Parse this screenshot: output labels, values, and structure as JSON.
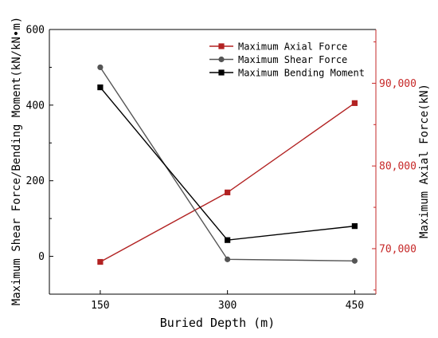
{
  "chart_data": {
    "type": "line",
    "xlabel": "Buried Depth (m)",
    "ylabel_left": "Maximum Shear Force/Bending Moment(kN/kN•m)",
    "ylabel_right": "Maximum Axial Force(kN)",
    "x": [
      150,
      300,
      450
    ],
    "xlim": [
      90,
      475
    ],
    "x_ticks": [
      150,
      300,
      450
    ],
    "ylim_left": [
      -100,
      600
    ],
    "y_ticks_left": [
      0,
      200,
      400,
      600
    ],
    "ylim_right": [
      64500,
      96500
    ],
    "y_ticks_right": [
      70000,
      80000,
      90000
    ],
    "y_tick_labels_right": [
      "70,000",
      "80,000",
      "90,000"
    ],
    "grid": false,
    "legend_position": "top-right",
    "series": [
      {
        "name": "Maximum Axial Force",
        "axis": "right",
        "marker": "square",
        "color": "#b22222",
        "values": [
          68400,
          76800,
          87600
        ]
      },
      {
        "name": "Maximum Shear Force",
        "axis": "left",
        "marker": "circle",
        "color": "#555555",
        "values": [
          500,
          -8,
          -12
        ]
      },
      {
        "name": "Maximum Bending Moment",
        "axis": "left",
        "marker": "square",
        "color": "#000000",
        "values": [
          447,
          43,
          80
        ]
      }
    ],
    "right_axis_color": "#c62828"
  }
}
